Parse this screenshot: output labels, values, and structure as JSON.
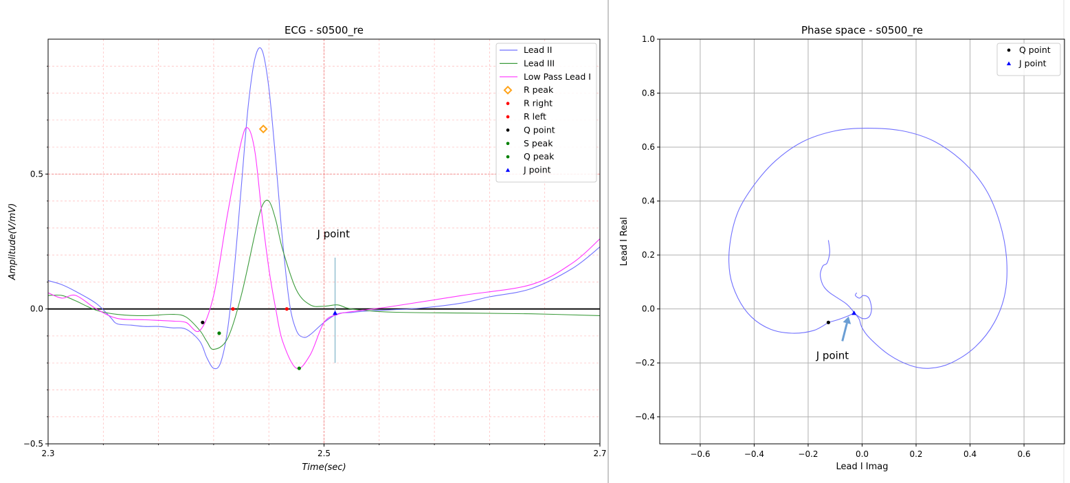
{
  "chart_data": [
    {
      "type": "line",
      "title": "ECG - s0500_re",
      "xlabel": "Time(sec)",
      "ylabel": "Amplitude(V/mV)",
      "xlim": [
        2.3,
        2.7
      ],
      "ylim": [
        -0.5,
        1.0
      ],
      "xticks": [
        2.3,
        2.5,
        2.7
      ],
      "xtick_labels": [
        "2.3",
        "2.5",
        "2.7"
      ],
      "yticks": [
        -0.5,
        0.0,
        0.5
      ],
      "ytick_labels": [
        "−0.5",
        "0.0",
        "0.5"
      ],
      "grid": true,
      "legend_placement": "top-right",
      "series": [
        {
          "name": "Lead II",
          "color": "#6f6fff",
          "x": [
            2.3,
            2.31,
            2.32,
            2.335,
            2.345,
            2.35,
            2.36,
            2.37,
            2.38,
            2.39,
            2.4,
            2.41,
            2.415,
            2.42,
            2.425,
            2.43,
            2.435,
            2.44,
            2.445,
            2.45,
            2.455,
            2.46,
            2.465,
            2.47,
            2.475,
            2.48,
            2.485,
            2.49,
            2.5,
            2.51,
            2.52,
            2.53,
            2.55,
            2.57,
            2.6,
            2.62,
            2.65,
            2.68,
            2.7
          ],
          "y": [
            0.105,
            0.09,
            0.065,
            0.02,
            -0.03,
            -0.055,
            -0.06,
            -0.065,
            -0.065,
            -0.07,
            -0.075,
            -0.12,
            -0.18,
            -0.22,
            -0.2,
            -0.08,
            0.15,
            0.45,
            0.75,
            0.93,
            0.96,
            0.82,
            0.55,
            0.25,
            0.02,
            -0.08,
            -0.105,
            -0.095,
            -0.05,
            -0.018,
            -0.013,
            -0.008,
            -0.003,
            0.003,
            0.022,
            0.045,
            0.075,
            0.15,
            0.23
          ]
        },
        {
          "name": "Lead III",
          "color": "#3a9a3a",
          "x": [
            2.3,
            2.31,
            2.32,
            2.335,
            2.35,
            2.37,
            2.39,
            2.4,
            2.41,
            2.415,
            2.42,
            2.43,
            2.44,
            2.45,
            2.455,
            2.46,
            2.465,
            2.47,
            2.48,
            2.49,
            2.5,
            2.51,
            2.52,
            2.55,
            2.6,
            2.65,
            2.7
          ],
          "y": [
            0.05,
            0.05,
            0.03,
            -0.005,
            -0.02,
            -0.025,
            -0.02,
            -0.03,
            -0.08,
            -0.12,
            -0.15,
            -0.11,
            0.05,
            0.28,
            0.38,
            0.4,
            0.33,
            0.22,
            0.07,
            0.015,
            0.01,
            0.015,
            0.0,
            -0.012,
            -0.015,
            -0.018,
            -0.025
          ]
        },
        {
          "name": "Low Pass Lead I",
          "color": "#ff33ff",
          "x": [
            2.3,
            2.31,
            2.32,
            2.335,
            2.35,
            2.37,
            2.39,
            2.4,
            2.41,
            2.42,
            2.43,
            2.44,
            2.445,
            2.45,
            2.455,
            2.46,
            2.465,
            2.47,
            2.48,
            2.49,
            2.5,
            2.51,
            2.52,
            2.55,
            2.6,
            2.65,
            2.68,
            2.7
          ],
          "y": [
            0.06,
            0.04,
            0.05,
            0.0,
            -0.035,
            -0.04,
            -0.045,
            -0.05,
            -0.08,
            0.05,
            0.35,
            0.62,
            0.67,
            0.58,
            0.35,
            0.15,
            0.0,
            -0.12,
            -0.22,
            -0.17,
            -0.05,
            -0.02,
            -0.01,
            0.01,
            0.05,
            0.09,
            0.17,
            0.26
          ]
        }
      ],
      "markers": [
        {
          "name": "R peak",
          "x": 2.456,
          "y": 0.667,
          "color": "#ffa31a",
          "shape": "diamond"
        },
        {
          "name": "R right",
          "x": 2.473,
          "y": 0.0,
          "color": "#ff0000",
          "shape": "dot"
        },
        {
          "name": "R left",
          "x": 2.434,
          "y": 0.0,
          "color": "#ff0000",
          "shape": "dot"
        },
        {
          "name": "Q point",
          "x": 2.412,
          "y": -0.05,
          "color": "#000000",
          "shape": "dot"
        },
        {
          "name": "S peak",
          "x": 2.482,
          "y": -0.22,
          "color": "#008000",
          "shape": "dot"
        },
        {
          "name": "Q peak",
          "x": 2.424,
          "y": -0.09,
          "color": "#008000",
          "shape": "dot"
        },
        {
          "name": "J point",
          "x": 2.508,
          "y": -0.015,
          "color": "#0000ff",
          "shape": "triangle"
        }
      ],
      "annotations": [
        {
          "text": "J point",
          "x": 2.508,
          "y": 0.25
        }
      ],
      "vline": {
        "x": 2.508,
        "y_from": -0.2,
        "y_to": 0.19,
        "color": "#7fb3c8"
      },
      "hline": {
        "y": 0.0,
        "color": "#000000"
      }
    },
    {
      "type": "line",
      "title": "Phase space - s0500_re",
      "xlabel": "Lead I Imag",
      "ylabel": "Lead I Real",
      "xlim": [
        -0.75,
        0.75
      ],
      "ylim": [
        -0.5,
        1.0
      ],
      "xticks": [
        -0.6,
        -0.4,
        -0.2,
        0.0,
        0.2,
        0.4,
        0.6
      ],
      "xtick_labels": [
        "−0.6",
        "−0.4",
        "−0.2",
        "0.0",
        "0.2",
        "0.4",
        "0.6"
      ],
      "yticks": [
        -0.4,
        -0.2,
        0.0,
        0.2,
        0.4,
        0.6,
        0.8,
        1.0
      ],
      "ytick_labels": [
        "−0.4",
        "−0.2",
        "0.0",
        "0.2",
        "0.4",
        "0.6",
        "0.8",
        "1.0"
      ],
      "grid": true,
      "legend_placement": "top-right",
      "series": [
        {
          "color": "#6f6fff",
          "x": [
            -0.125,
            -0.09,
            -0.05,
            -0.03
          ],
          "y": [
            -0.05,
            -0.04,
            -0.025,
            -0.015
          ]
        },
        {
          "color": "#6f6fff",
          "x": [
            -0.125,
            -0.18,
            -0.26,
            -0.34,
            -0.41,
            -0.46,
            -0.49,
            -0.49,
            -0.46,
            -0.4,
            -0.32,
            -0.22,
            -0.1,
            0.02,
            0.15,
            0.27,
            0.38,
            0.46,
            0.51,
            0.535,
            0.53,
            0.49,
            0.42,
            0.33,
            0.25,
            0.18,
            0.1,
            0.03,
            0.0,
            -0.01,
            -0.02,
            -0.03
          ],
          "y": [
            -0.05,
            -0.08,
            -0.09,
            -0.075,
            -0.03,
            0.04,
            0.13,
            0.24,
            0.36,
            0.46,
            0.55,
            0.62,
            0.66,
            0.67,
            0.66,
            0.62,
            0.54,
            0.44,
            0.32,
            0.19,
            0.06,
            -0.05,
            -0.14,
            -0.2,
            -0.22,
            -0.21,
            -0.17,
            -0.11,
            -0.07,
            -0.04,
            -0.025,
            -0.015
          ]
        },
        {
          "color": "#6f6fff",
          "x": [
            -0.03,
            -0.04,
            -0.06,
            -0.09,
            -0.12,
            -0.14,
            -0.15,
            -0.155,
            -0.145,
            -0.13,
            -0.12,
            -0.125
          ],
          "y": [
            -0.015,
            0.0,
            0.02,
            0.04,
            0.06,
            0.08,
            0.1,
            0.13,
            0.16,
            0.17,
            0.21,
            0.255
          ]
        },
        {
          "color": "#6f6fff",
          "x": [
            -0.03,
            0.0,
            0.025,
            0.035,
            0.025,
            0.005,
            -0.01,
            -0.025,
            -0.02
          ],
          "y": [
            -0.015,
            -0.035,
            -0.03,
            0.0,
            0.04,
            0.05,
            0.04,
            0.05,
            0.06
          ]
        }
      ],
      "markers": [
        {
          "name": "Q point",
          "x": -0.125,
          "y": -0.05,
          "color": "#000000",
          "shape": "dot"
        },
        {
          "name": "J point",
          "x": -0.03,
          "y": -0.015,
          "color": "#0000ff",
          "shape": "triangle"
        }
      ],
      "annotations": [
        {
          "text": "J point",
          "x": -0.17,
          "y": -0.165,
          "arrow_to": {
            "x": -0.05,
            "y": -0.028
          }
        }
      ]
    }
  ]
}
